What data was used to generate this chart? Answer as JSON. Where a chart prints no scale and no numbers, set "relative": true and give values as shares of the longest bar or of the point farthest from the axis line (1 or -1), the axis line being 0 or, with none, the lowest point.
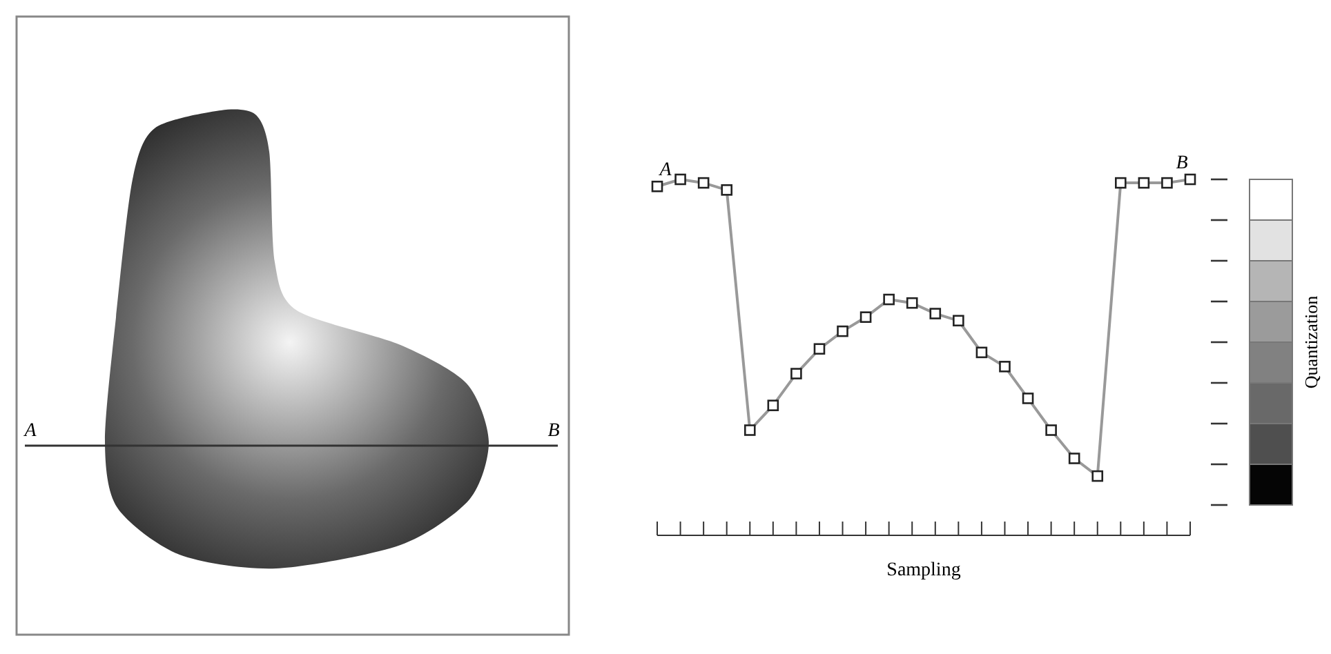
{
  "chart_data": {
    "type": "line",
    "relative": true,
    "xlabel": "Sampling",
    "clabel": "Quantization",
    "categories": [
      null,
      null,
      null,
      null,
      null,
      null,
      null,
      null,
      null,
      null,
      null,
      null,
      null,
      null,
      null,
      null,
      null,
      null,
      null,
      null,
      null,
      null,
      null,
      null
    ],
    "series": [
      {
        "color": "#999999",
        "values": [
          0.98,
          1.0,
          0.99,
          0.97,
          0.29,
          0.36,
          0.45,
          0.52,
          0.57,
          0.61,
          0.66,
          0.65,
          0.62,
          0.6,
          0.51,
          0.47,
          0.38,
          0.29,
          0.21,
          0.16,
          0.99,
          0.99,
          0.99,
          1.0
        ]
      }
    ],
    "marker": "square",
    "annotations": [
      "A",
      "B",
      "A",
      "B"
    ]
  }
}
